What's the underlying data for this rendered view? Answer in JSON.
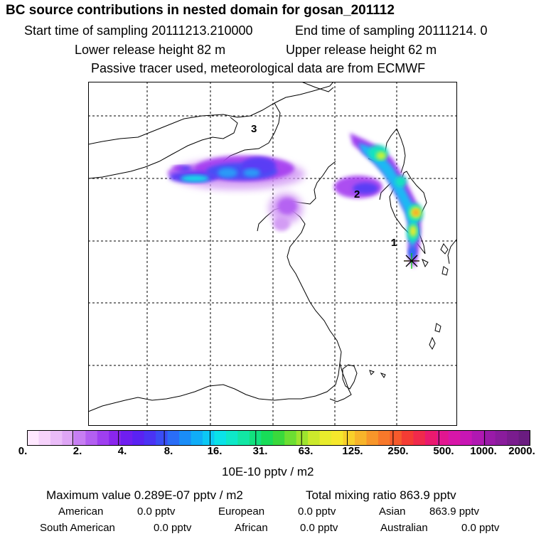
{
  "header": {
    "title": "BC  source contributions in nested domain for gosan_201112",
    "start_time": "Start time of sampling 20111213.210000",
    "end_time": "End time of sampling 20111214.     0",
    "lower_height": "Lower release height   82 m",
    "upper_height": "Upper release height   62 m",
    "tracer_info": "Passive tracer used, meteorological data are from ECMWF"
  },
  "map": {
    "region_labels": [
      "3",
      "2",
      "1"
    ],
    "plume_colors": [
      "#a43bf0",
      "#5a3cf5",
      "#2a7af7",
      "#18d8e8",
      "#10e28c",
      "#c4f23a",
      "#f2e83a",
      "#f29a2e"
    ]
  },
  "colorbar": {
    "colors": [
      "#ffe8ff",
      "#f6d2fb",
      "#eabcf8",
      "#dea5f5",
      "#c77ef3",
      "#b35ff1",
      "#9f3ff0",
      "#8a26ed",
      "#6f1ef0",
      "#5a22f2",
      "#4a33f4",
      "#3a4df5",
      "#2a6df6",
      "#1a8df7",
      "#10adf7",
      "#0cc8f4",
      "#0ae2e8",
      "#0ee8c8",
      "#12e6a4",
      "#12e17e",
      "#18dc58",
      "#3ad83c",
      "#6cde32",
      "#9ee42e",
      "#cbe92c",
      "#e8ec2c",
      "#f6e82c",
      "#f8d02a",
      "#f7b42a",
      "#f7962a",
      "#f7782a",
      "#f65a2c",
      "#f43c34",
      "#f02a4c",
      "#ea1a6e",
      "#e21690",
      "#d816a8",
      "#c816b4",
      "#b018b2",
      "#9a1aa8",
      "#8a1c9c",
      "#7a1c8e",
      "#6a1c80"
    ],
    "tick_labels": [
      "0.",
      "2.",
      "4.",
      "8.",
      "16.",
      "31.",
      "63.",
      "125.",
      "250.",
      "500.",
      "1000.",
      "2000."
    ],
    "unit": "10E-10 pptv / m2"
  },
  "footer": {
    "max_value": "Maximum value  0.289E-07 pptv / m2",
    "total_mixing": "Total mixing ratio      863.9 pptv",
    "regions": [
      {
        "name": "American",
        "value": "0.0 pptv"
      },
      {
        "name": "European",
        "value": "0.0 pptv"
      },
      {
        "name": "Asian",
        "value": "863.9 pptv"
      },
      {
        "name": "South American",
        "value": "0.0 pptv"
      },
      {
        "name": "African",
        "value": "0.0 pptv"
      },
      {
        "name": "Australian",
        "value": "0.0 pptv"
      }
    ]
  }
}
